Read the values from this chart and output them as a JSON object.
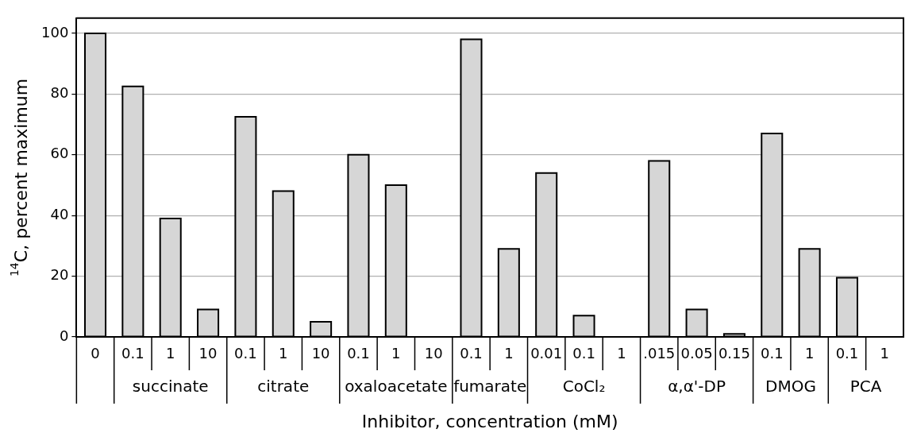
{
  "chart_data": {
    "type": "bar",
    "categories": [
      "0",
      "0.1",
      "1",
      "10",
      "0.1",
      "1",
      "10",
      "0.1",
      "1",
      "10",
      "0.1",
      "1",
      "0.01",
      "0.1",
      "1",
      ".015",
      "0.05",
      "0.15",
      "0.1",
      "1",
      "0.1",
      "1"
    ],
    "values": [
      100,
      82.5,
      39,
      9,
      72.5,
      48,
      5,
      60,
      50,
      0,
      98,
      29,
      54,
      7,
      0,
      58,
      9,
      1,
      67,
      29,
      19.5,
      0
    ],
    "color": "#d6d6d6",
    "annotations": [
      "succinate",
      "citrate",
      "oxaloacetate",
      "fumarate",
      "CoCl₂",
      "α,α'-DP",
      "DMOG",
      "PCA"
    ],
    "xlabel": "Inhibitor, concentration (mM)",
    "ylabel": "$^{14}$C, percent maximum",
    "ylim": [
      0,
      105
    ],
    "yticks": [
      0,
      20,
      40,
      60,
      80,
      100
    ],
    "grid": "y",
    "legend": false
  }
}
